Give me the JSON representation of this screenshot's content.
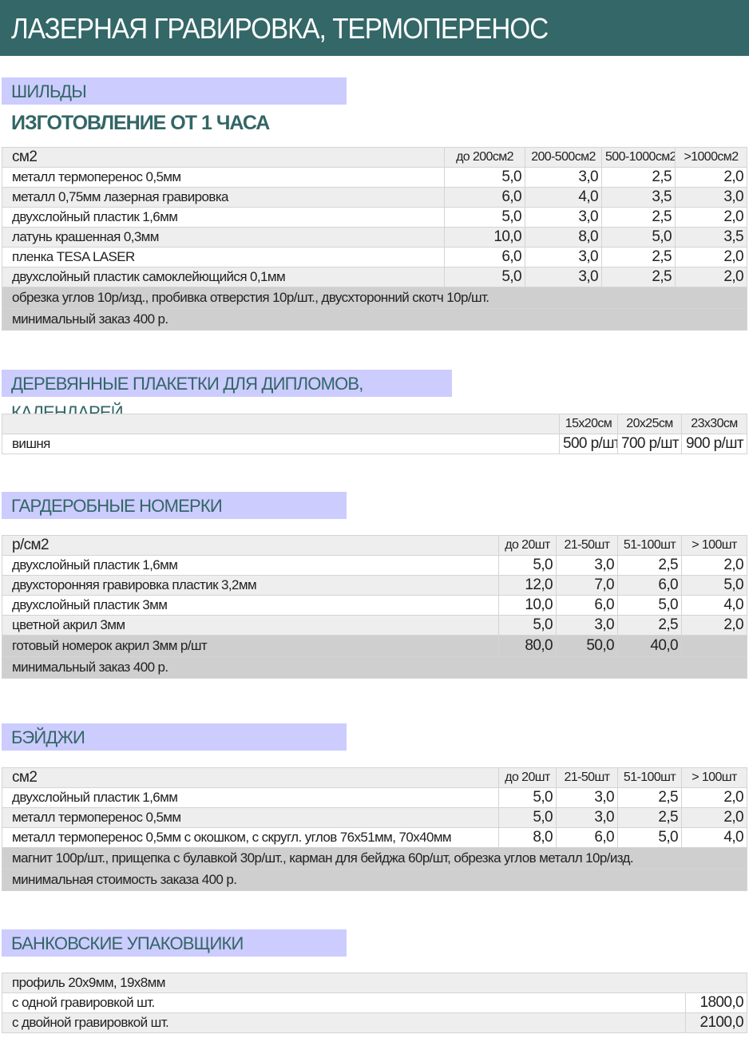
{
  "title": "ЛАЗЕРНАЯ ГРАВИРОВКА, ТЕРМОПЕРЕНОС",
  "colors": {
    "header": "#346767",
    "section_bg": "#ccccff",
    "section_text": "#336666"
  },
  "s1": {
    "label": "ШИЛЬДЫ",
    "subtitle": "ИЗГОТОВЛЕНИЕ ОТ 1 ЧАСА",
    "header": [
      "см2",
      "до 200см2",
      "200-500см2",
      "500-1000см2",
      ">1000см2"
    ],
    "rows": [
      [
        "металл термоперенос 0,5мм",
        "5,0",
        "3,0",
        "2,5",
        "2,0"
      ],
      [
        "металл 0,75мм лазерная гравировка",
        "6,0",
        "4,0",
        "3,5",
        "3,0"
      ],
      [
        "двухслойный пластик 1,6мм",
        "5,0",
        "3,0",
        "2,5",
        "2,0"
      ],
      [
        "латунь крашенная 0,3мм",
        "10,0",
        "8,0",
        "5,0",
        "3,5"
      ],
      [
        "пленка TESA LASER",
        "6,0",
        "3,0",
        "2,5",
        "2,0"
      ],
      [
        "двухслойный пластик самоклейющийся 0,1мм",
        "5,0",
        "3,0",
        "2,5",
        "2,0"
      ]
    ],
    "notes": [
      "обрезка углов 10р/изд., пробивка отверстия 10р/шт., двусхторонний скотч 10р/шт.",
      "минимальный заказ 400 р."
    ]
  },
  "s2": {
    "label": "ДЕРЕВЯННЫЕ ПЛАКЕТКИ ДЛЯ ДИПЛОМОВ, КАЛЕНДАРЕЙ",
    "header": [
      "",
      "15x20см",
      "20x25см",
      "23x30см"
    ],
    "rows": [
      [
        "вишня",
        "500 р/шт",
        "700 р/шт",
        "900 р/шт"
      ]
    ]
  },
  "s3": {
    "label": "ГАРДЕРОБНЫЕ НОМЕРКИ",
    "header": [
      "р/см2",
      "до 20шт",
      "21-50шт",
      "51-100шт",
      "> 100шт"
    ],
    "rows": [
      [
        "двухслойный пластик 1,6мм",
        "5,0",
        "3,0",
        "2,5",
        "2,0"
      ],
      [
        "двухсторонняя гравировка пластик 3,2мм",
        "12,0",
        "7,0",
        "6,0",
        "5,0"
      ],
      [
        "двухслойный пластик 3мм",
        "10,0",
        "6,0",
        "5,0",
        "4,0"
      ],
      [
        "цветной акрил 3мм",
        "5,0",
        "3,0",
        "2,5",
        "2,0"
      ]
    ],
    "ready": [
      "готовый номерок акрил 3мм     р/шт",
      "80,0",
      "50,0",
      "40,0",
      ""
    ],
    "notes": [
      "минимальный заказ 400 р."
    ]
  },
  "s4": {
    "label": "БЭЙДЖИ",
    "header": [
      "см2",
      "до 20шт",
      "21-50шт",
      "51-100шт",
      "> 100шт"
    ],
    "rows": [
      [
        "двухслойный пластик 1,6мм",
        "5,0",
        "3,0",
        "2,5",
        "2,0"
      ],
      [
        "металл термоперенос 0,5мм",
        "5,0",
        "3,0",
        "2,5",
        "2,0"
      ],
      [
        "металл термоперенос 0,5мм с окошком, с скругл. углов 76x51мм, 70x40мм",
        "8,0",
        "6,0",
        "5,0",
        "4,0"
      ]
    ],
    "notes": [
      "магнит 100р/шт., прищепка с булавкой 30р/шт., карман для бейджа 60р/шт, обрезка углов металл 10р/изд.",
      "минимальная стоимость заказа 400 р."
    ]
  },
  "s5": {
    "label": "БАНКОВСКИЕ УПАКОВЩИКИ",
    "header": "профиль  20x9мм,   19x8мм",
    "rows": [
      [
        "с одной гравировкой шт.",
        "1800,0"
      ],
      [
        "с двойной гравировкой шт.",
        "2100,0"
      ]
    ]
  }
}
